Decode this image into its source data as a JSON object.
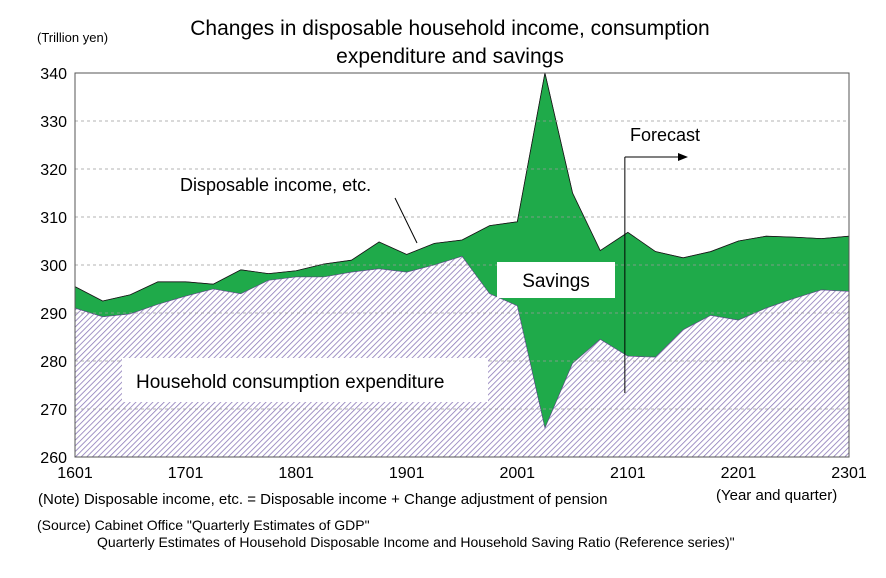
{
  "chart_data": {
    "type": "area",
    "title_line1": "Changes in disposable household income, consumption",
    "title_line2": "expenditure and savings",
    "y_unit": "(Trillion yen)",
    "x_unit": "(Year and  quarter)",
    "ylim": [
      260,
      340
    ],
    "y_ticks": [
      "260",
      "270",
      "280",
      "290",
      "300",
      "310",
      "320",
      "330",
      "340"
    ],
    "x_tick_labels": [
      "1601",
      "1701",
      "1801",
      "1901",
      "2001",
      "2101",
      "2201",
      "2301"
    ],
    "grid": "horizontal dashed",
    "x": [
      "1601",
      "1602",
      "1603",
      "1604",
      "1701",
      "1702",
      "1703",
      "1704",
      "1801",
      "1802",
      "1803",
      "1804",
      "1901",
      "1902",
      "1903",
      "1904",
      "2001",
      "2002",
      "2003",
      "2004",
      "2101",
      "2102",
      "2103",
      "2104",
      "2201",
      "2202",
      "2203",
      "2204",
      "2301"
    ],
    "series": [
      {
        "name": "Disposable income, etc.",
        "color": "#1faa4a",
        "values": [
          295.5,
          292.5,
          293.8,
          296.5,
          296.5,
          296.0,
          299.0,
          298.2,
          298.8,
          300.2,
          301.0,
          304.8,
          302.2,
          304.5,
          305.2,
          308.2,
          309.0,
          340.0,
          315.0,
          303.0,
          306.8,
          302.8,
          301.5,
          302.8,
          305.0,
          306.0,
          305.8,
          305.5,
          306.0
        ]
      },
      {
        "name": "Household consumption expenditure",
        "color": "#8b79b8",
        "values": [
          291.0,
          289.2,
          289.8,
          291.8,
          293.5,
          295.0,
          294.0,
          296.8,
          297.5,
          297.5,
          298.5,
          299.2,
          298.5,
          300.0,
          301.8,
          294.0,
          291.5,
          266.0,
          279.5,
          284.5,
          281.0,
          280.8,
          286.5,
          289.5,
          288.5,
          291.0,
          293.0,
          294.8,
          294.5
        ]
      }
    ],
    "annotations": {
      "disposable": "Disposable income, etc.",
      "savings": "Savings",
      "consumption": "Household consumption expenditure",
      "forecast": "Forecast",
      "forecast_start": "2101"
    }
  },
  "notes": {
    "note_line": "(Note) Disposable income, etc. = Disposable income + Change adjustment of pension",
    "source_line1": "(Source) Cabinet Office \"Quarterly Estimates of GDP\"",
    "source_line2": "Quarterly Estimates of Household Disposable Income and Household Saving Ratio (Reference series)\""
  }
}
